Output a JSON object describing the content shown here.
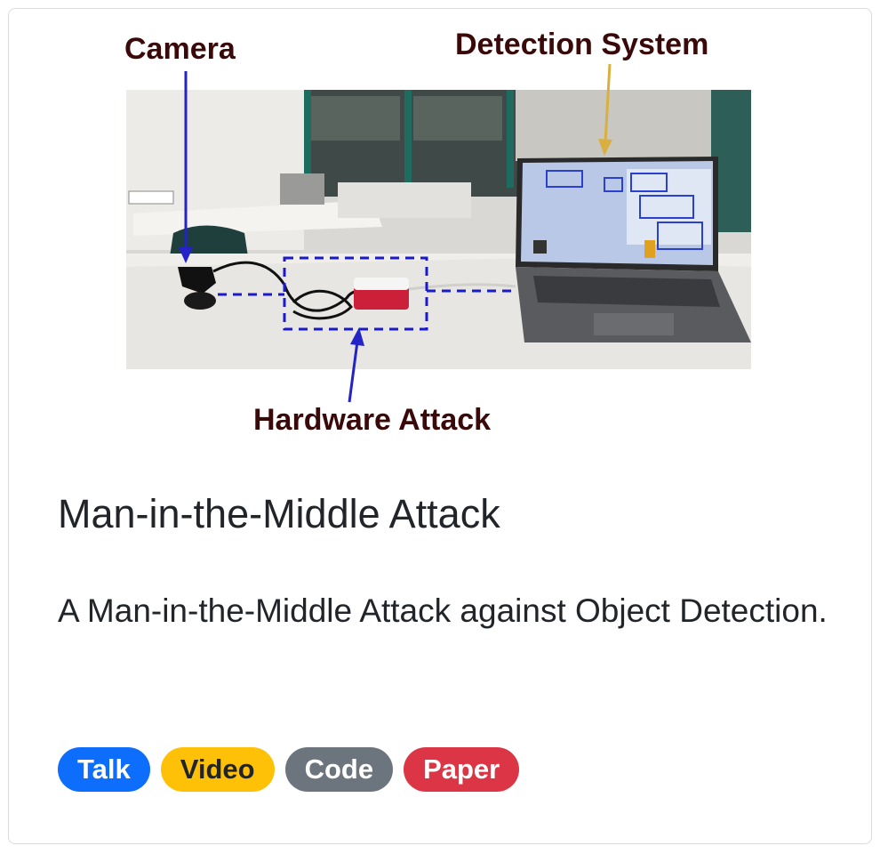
{
  "figure": {
    "labels": {
      "camera": "Camera",
      "detection_system": "Detection System",
      "hardware_attack": "Hardware Attack"
    }
  },
  "card": {
    "title": "Man-in-the-Middle Attack",
    "description": "A Man-in-the-Middle Attack against Object Detection."
  },
  "badges": {
    "talk": "Talk",
    "video": "Video",
    "code": "Code",
    "paper": "Paper"
  },
  "colors": {
    "talk": "#0d6efd",
    "video": "#ffc107",
    "code": "#6c757d",
    "paper": "#dc3545"
  }
}
